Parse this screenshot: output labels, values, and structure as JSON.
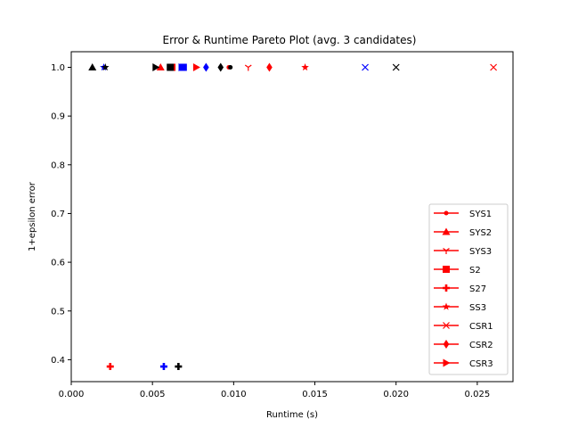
{
  "chart_data": {
    "type": "scatter",
    "title": "Error & Runtime Pareto Plot (avg. 3 candidates)",
    "xlabel": "Runtime (s)",
    "ylabel": "1+epsilon error",
    "xlim": [
      0.0,
      0.0272
    ],
    "ylim": [
      0.355,
      1.032
    ],
    "xticks": [
      0.0,
      0.005,
      0.01,
      0.015,
      0.02,
      0.025
    ],
    "xtick_labels": [
      "0.000",
      "0.005",
      "0.010",
      "0.015",
      "0.020",
      "0.025"
    ],
    "yticks": [
      0.4,
      0.5,
      0.6,
      0.7,
      0.8,
      0.9,
      1.0
    ],
    "ytick_labels": [
      "0.4",
      "0.5",
      "0.6",
      "0.7",
      "0.8",
      "0.9",
      "1.0"
    ],
    "grid": false,
    "legend_position": "lower-right",
    "colors": {
      "red": "#ff0000",
      "blue": "#0000ff",
      "black": "#000000"
    },
    "legend": [
      {
        "name": "SYS1",
        "marker": "point"
      },
      {
        "name": "SYS2",
        "marker": "triangle"
      },
      {
        "name": "SYS3",
        "marker": "tri-down"
      },
      {
        "name": "S2",
        "marker": "square"
      },
      {
        "name": "S27",
        "marker": "plus"
      },
      {
        "name": "SS3",
        "marker": "star"
      },
      {
        "name": "CSR1",
        "marker": "x"
      },
      {
        "name": "CSR2",
        "marker": "diamond"
      },
      {
        "name": "CSR3",
        "marker": "triangle-right"
      }
    ],
    "series": [
      {
        "name": "SYS1",
        "marker": "point",
        "points": [
          {
            "x": 0.0097,
            "y": 1.0,
            "color": "red"
          },
          {
            "x": 0.0098,
            "y": 1.0,
            "color": "black"
          }
        ]
      },
      {
        "name": "SYS2",
        "marker": "triangle",
        "points": [
          {
            "x": 0.0055,
            "y": 1.0,
            "color": "red"
          },
          {
            "x": 0.0013,
            "y": 1.0,
            "color": "black"
          }
        ]
      },
      {
        "name": "SYS3",
        "marker": "tri-down",
        "points": [
          {
            "x": 0.0109,
            "y": 1.0,
            "color": "red"
          }
        ]
      },
      {
        "name": "S2",
        "marker": "square",
        "points": [
          {
            "x": 0.0062,
            "y": 1.0,
            "color": "red"
          },
          {
            "x": 0.0069,
            "y": 1.0,
            "color": "blue"
          },
          {
            "x": 0.0061,
            "y": 1.0,
            "color": "black"
          }
        ]
      },
      {
        "name": "S27",
        "marker": "plus",
        "points": [
          {
            "x": 0.0024,
            "y": 0.386,
            "color": "red"
          },
          {
            "x": 0.0057,
            "y": 0.386,
            "color": "blue"
          },
          {
            "x": 0.0066,
            "y": 0.386,
            "color": "black"
          }
        ]
      },
      {
        "name": "SS3",
        "marker": "star",
        "points": [
          {
            "x": 0.0144,
            "y": 1.0,
            "color": "red"
          },
          {
            "x": 0.002,
            "y": 1.0,
            "color": "blue"
          },
          {
            "x": 0.0021,
            "y": 1.0,
            "color": "black"
          }
        ]
      },
      {
        "name": "CSR1",
        "marker": "x",
        "points": [
          {
            "x": 0.026,
            "y": 1.0,
            "color": "red"
          },
          {
            "x": 0.0181,
            "y": 1.0,
            "color": "blue"
          },
          {
            "x": 0.02,
            "y": 1.0,
            "color": "black"
          }
        ]
      },
      {
        "name": "CSR2",
        "marker": "diamond",
        "points": [
          {
            "x": 0.0122,
            "y": 1.0,
            "color": "red"
          },
          {
            "x": 0.0083,
            "y": 1.0,
            "color": "blue"
          },
          {
            "x": 0.0092,
            "y": 1.0,
            "color": "black"
          }
        ]
      },
      {
        "name": "CSR3",
        "marker": "triangle-right",
        "points": [
          {
            "x": 0.0077,
            "y": 1.0,
            "color": "red"
          },
          {
            "x": 0.0068,
            "y": 1.0,
            "color": "blue"
          },
          {
            "x": 0.0052,
            "y": 1.0,
            "color": "black"
          }
        ]
      }
    ]
  }
}
